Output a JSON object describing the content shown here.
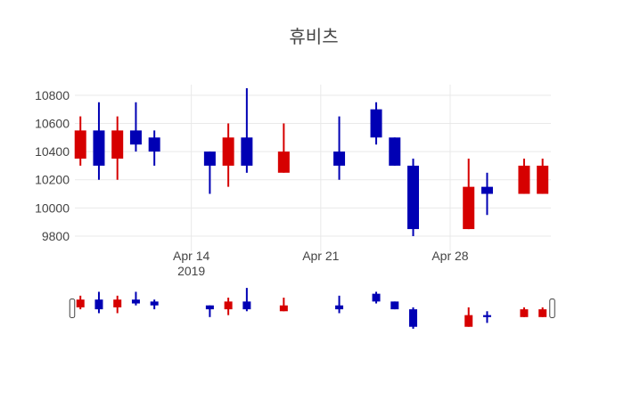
{
  "chart_data": {
    "type": "candlestick",
    "title": "휴비츠",
    "xlabel": "",
    "ylabel": "",
    "legend": "none",
    "grid": "on",
    "rangeslider": true,
    "y_ticks": [
      10800,
      10600,
      10400,
      10200,
      10000,
      9800
    ],
    "ylim": [
      9705,
      10875
    ],
    "slider_ylim": [
      9775,
      10875
    ],
    "xlim_slots": [
      -0.3,
      25.45
    ],
    "x_ticks": [
      {
        "slot": 6,
        "label": "Apr 14",
        "sublabel": "2019"
      },
      {
        "slot": 13,
        "label": "Apr 21",
        "sublabel": ""
      },
      {
        "slot": 20,
        "label": "Apr 28",
        "sublabel": ""
      }
    ],
    "colors": {
      "increasing": "#d60000",
      "decreasing": "#0000b4",
      "grid": "#e9e9e9",
      "tick_text": "#444444",
      "title_text": "#444444",
      "handle_fill": "#ffffff",
      "handle_border": "#444444",
      "background": "#ffffff"
    },
    "candles": [
      {
        "date": "Apr 8",
        "slot": 0,
        "open": 10350,
        "high": 10650,
        "low": 10300,
        "close": 10550
      },
      {
        "date": "Apr 9",
        "slot": 1,
        "open": 10550,
        "high": 10750,
        "low": 10200,
        "close": 10300
      },
      {
        "date": "Apr 10",
        "slot": 2,
        "open": 10350,
        "high": 10650,
        "low": 10200,
        "close": 10550
      },
      {
        "date": "Apr 11",
        "slot": 3,
        "open": 10550,
        "high": 10750,
        "low": 10400,
        "close": 10450
      },
      {
        "date": "Apr 12",
        "slot": 4,
        "open": 10500,
        "high": 10550,
        "low": 10300,
        "close": 10400
      },
      {
        "date": "Apr 15",
        "slot": 7,
        "open": 10400,
        "high": 10400,
        "low": 10100,
        "close": 10300
      },
      {
        "date": "Apr 16",
        "slot": 8,
        "open": 10300,
        "high": 10600,
        "low": 10150,
        "close": 10500
      },
      {
        "date": "Apr 17",
        "slot": 9,
        "open": 10500,
        "high": 10850,
        "low": 10250,
        "close": 10300
      },
      {
        "date": "Apr 19",
        "slot": 11,
        "open": 10250,
        "high": 10600,
        "low": 10250,
        "close": 10400
      },
      {
        "date": "Apr 22",
        "slot": 14,
        "open": 10400,
        "high": 10650,
        "low": 10200,
        "close": 10300
      },
      {
        "date": "Apr 24",
        "slot": 16,
        "open": 10700,
        "high": 10750,
        "low": 10450,
        "close": 10500
      },
      {
        "date": "Apr 25",
        "slot": 17,
        "open": 10500,
        "high": 10500,
        "low": 10300,
        "close": 10300
      },
      {
        "date": "Apr 26",
        "slot": 18,
        "open": 10300,
        "high": 10350,
        "low": 9800,
        "close": 9850
      },
      {
        "date": "Apr 29",
        "slot": 21,
        "open": 9850,
        "high": 10350,
        "low": 9850,
        "close": 10150
      },
      {
        "date": "Apr 30",
        "slot": 22,
        "open": 10150,
        "high": 10250,
        "low": 9950,
        "close": 10100
      },
      {
        "date": "May 2",
        "slot": 24,
        "open": 10100,
        "high": 10350,
        "low": 10100,
        "close": 10300
      },
      {
        "date": "May 3",
        "slot": 25,
        "open": 10100,
        "high": 10350,
        "low": 10100,
        "close": 10300
      }
    ]
  }
}
